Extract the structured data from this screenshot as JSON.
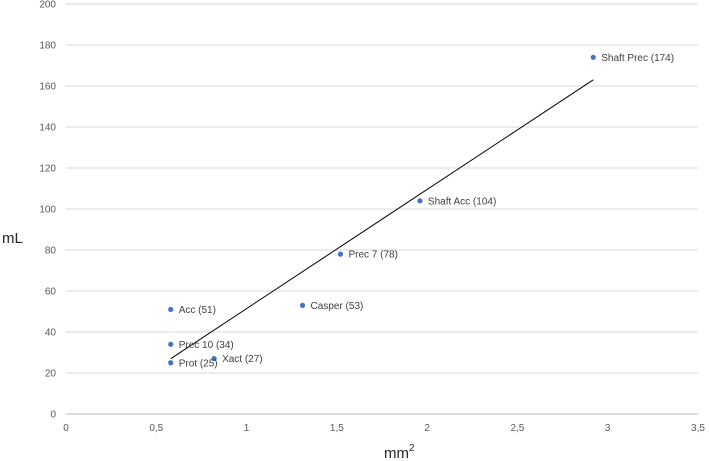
{
  "chart_data": {
    "type": "scatter",
    "xlabel": "mm",
    "xlabel_superscript": "2",
    "ylabel": "mL",
    "xlim": [
      0,
      3.5
    ],
    "ylim": [
      0,
      200
    ],
    "x_ticks": [
      "0",
      "0,5",
      "1",
      "1,5",
      "2",
      "2,5",
      "3",
      "3,5"
    ],
    "y_ticks": [
      "0",
      "20",
      "40",
      "60",
      "80",
      "100",
      "120",
      "140",
      "160",
      "180",
      "200"
    ],
    "grid": "horizontal",
    "trendline": {
      "type": "linear",
      "x": [
        0.58,
        2.92
      ],
      "y": [
        27,
        163
      ]
    },
    "points": [
      {
        "label": "Acc (51)",
        "x": 0.58,
        "y": 51
      },
      {
        "label": "Prec 10 (34)",
        "x": 0.58,
        "y": 34
      },
      {
        "label": "Prot (25)",
        "x": 0.58,
        "y": 25
      },
      {
        "label": "Xact (27)",
        "x": 0.82,
        "y": 27
      },
      {
        "label": "Casper (53)",
        "x": 1.31,
        "y": 53
      },
      {
        "label": "Prec 7 (78)",
        "x": 1.52,
        "y": 78
      },
      {
        "label": "Shaft Acc (104)",
        "x": 1.96,
        "y": 104
      },
      {
        "label": "Shaft Prec (174)",
        "x": 2.92,
        "y": 174
      }
    ],
    "colors": {
      "point": "#4472c4",
      "trendline": "#000000",
      "grid": "#d9d9d9"
    }
  }
}
